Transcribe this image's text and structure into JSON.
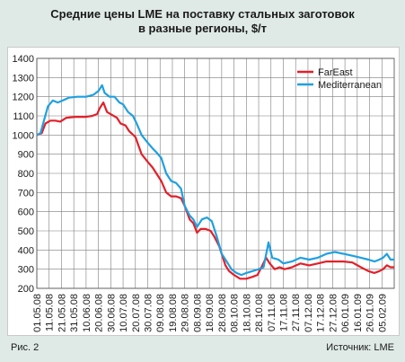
{
  "figure": {
    "title_line1": "Средние цены LME на поставку стальных заготовок",
    "title_line2": "в разные регионы, $/т",
    "caption": "Рис. 2",
    "source": "Источник: LME"
  },
  "chart_data": {
    "type": "line",
    "ylim": [
      200,
      1400
    ],
    "yticks": [
      200,
      300,
      400,
      500,
      600,
      700,
      800,
      900,
      1000,
      1100,
      1200,
      1300,
      1400
    ],
    "xlim": [
      "2008-05-01",
      "2009-02-15"
    ],
    "xticks": [
      "01.05.08",
      "11.05.08",
      "21.05.08",
      "31.05.08",
      "10.06.08",
      "20.06.08",
      "30.06.08",
      "10.07.08",
      "20.07.08",
      "30.07.08",
      "09.08.08",
      "19.08.08",
      "29.08.08",
      "08.09.08",
      "18.09.08",
      "28.09.08",
      "08.10.08",
      "18.10.08",
      "28.10.08",
      "07.11.08",
      "17.11.08",
      "27.11.08",
      "07.12.08",
      "17.12.08",
      "27.12.08",
      "06.01.09",
      "16.01.09",
      "26.01.09",
      "05.02.09"
    ],
    "grid": true,
    "legend_position": "top-right",
    "series": [
      {
        "name": "FarEast",
        "color": "#e2202a",
        "points": [
          [
            "2008-05-01",
            1000
          ],
          [
            "2008-05-05",
            1010
          ],
          [
            "2008-05-08",
            1060
          ],
          [
            "2008-05-12",
            1075
          ],
          [
            "2008-05-16",
            1075
          ],
          [
            "2008-05-20",
            1070
          ],
          [
            "2008-05-25",
            1090
          ],
          [
            "2008-06-01",
            1095
          ],
          [
            "2008-06-10",
            1095
          ],
          [
            "2008-06-15",
            1100
          ],
          [
            "2008-06-19",
            1110
          ],
          [
            "2008-06-21",
            1140
          ],
          [
            "2008-06-24",
            1170
          ],
          [
            "2008-06-27",
            1120
          ],
          [
            "2008-07-01",
            1105
          ],
          [
            "2008-07-05",
            1090
          ],
          [
            "2008-07-08",
            1060
          ],
          [
            "2008-07-12",
            1050
          ],
          [
            "2008-07-15",
            1020
          ],
          [
            "2008-07-20",
            990
          ],
          [
            "2008-07-25",
            900
          ],
          [
            "2008-07-30",
            860
          ],
          [
            "2008-08-03",
            830
          ],
          [
            "2008-08-06",
            800
          ],
          [
            "2008-08-10",
            760
          ],
          [
            "2008-08-14",
            700
          ],
          [
            "2008-08-18",
            680
          ],
          [
            "2008-08-22",
            680
          ],
          [
            "2008-08-26",
            670
          ],
          [
            "2008-08-29",
            630
          ],
          [
            "2008-09-02",
            560
          ],
          [
            "2008-09-05",
            540
          ],
          [
            "2008-09-08",
            490
          ],
          [
            "2008-09-11",
            510
          ],
          [
            "2008-09-15",
            510
          ],
          [
            "2008-09-19",
            500
          ],
          [
            "2008-09-22",
            470
          ],
          [
            "2008-09-26",
            420
          ],
          [
            "2008-10-01",
            320
          ],
          [
            "2008-10-04",
            290
          ],
          [
            "2008-10-08",
            270
          ],
          [
            "2008-10-13",
            250
          ],
          [
            "2008-10-18",
            250
          ],
          [
            "2008-10-23",
            260
          ],
          [
            "2008-10-27",
            270
          ],
          [
            "2008-10-31",
            320
          ],
          [
            "2008-11-03",
            360
          ],
          [
            "2008-11-06",
            330
          ],
          [
            "2008-11-10",
            300
          ],
          [
            "2008-11-14",
            310
          ],
          [
            "2008-11-18",
            300
          ],
          [
            "2008-11-24",
            310
          ],
          [
            "2008-12-01",
            330
          ],
          [
            "2008-12-08",
            320
          ],
          [
            "2008-12-15",
            330
          ],
          [
            "2008-12-22",
            340
          ],
          [
            "2008-12-29",
            340
          ],
          [
            "2009-01-05",
            340
          ],
          [
            "2009-01-12",
            335
          ],
          [
            "2009-01-19",
            310
          ],
          [
            "2009-01-25",
            290
          ],
          [
            "2009-01-30",
            280
          ],
          [
            "2009-02-03",
            290
          ],
          [
            "2009-02-06",
            300
          ],
          [
            "2009-02-09",
            320
          ],
          [
            "2009-02-12",
            310
          ],
          [
            "2009-02-15",
            310
          ]
        ]
      },
      {
        "name": "Mediterranean",
        "color": "#1fa0e0",
        "points": [
          [
            "2008-05-01",
            1000
          ],
          [
            "2008-05-04",
            1010
          ],
          [
            "2008-05-07",
            1080
          ],
          [
            "2008-05-10",
            1150
          ],
          [
            "2008-05-14",
            1180
          ],
          [
            "2008-05-18",
            1170
          ],
          [
            "2008-05-22",
            1180
          ],
          [
            "2008-05-27",
            1195
          ],
          [
            "2008-06-03",
            1200
          ],
          [
            "2008-06-10",
            1200
          ],
          [
            "2008-06-16",
            1210
          ],
          [
            "2008-06-20",
            1230
          ],
          [
            "2008-06-23",
            1260
          ],
          [
            "2008-06-25",
            1220
          ],
          [
            "2008-06-29",
            1200
          ],
          [
            "2008-07-03",
            1200
          ],
          [
            "2008-07-07",
            1170
          ],
          [
            "2008-07-10",
            1160
          ],
          [
            "2008-07-14",
            1120
          ],
          [
            "2008-07-18",
            1100
          ],
          [
            "2008-07-21",
            1060
          ],
          [
            "2008-07-25",
            1000
          ],
          [
            "2008-07-30",
            960
          ],
          [
            "2008-08-03",
            930
          ],
          [
            "2008-08-06",
            910
          ],
          [
            "2008-08-10",
            880
          ],
          [
            "2008-08-14",
            800
          ],
          [
            "2008-08-18",
            760
          ],
          [
            "2008-08-22",
            750
          ],
          [
            "2008-08-26",
            720
          ],
          [
            "2008-08-29",
            630
          ],
          [
            "2008-09-02",
            580
          ],
          [
            "2008-09-05",
            560
          ],
          [
            "2008-09-08",
            520
          ],
          [
            "2008-09-12",
            560
          ],
          [
            "2008-09-16",
            570
          ],
          [
            "2008-09-20",
            550
          ],
          [
            "2008-09-24",
            470
          ],
          [
            "2008-09-28",
            380
          ],
          [
            "2008-10-02",
            340
          ],
          [
            "2008-10-06",
            300
          ],
          [
            "2008-10-10",
            280
          ],
          [
            "2008-10-14",
            270
          ],
          [
            "2008-10-18",
            280
          ],
          [
            "2008-10-23",
            290
          ],
          [
            "2008-10-28",
            300
          ],
          [
            "2008-11-01",
            310
          ],
          [
            "2008-11-05",
            440
          ],
          [
            "2008-11-08",
            360
          ],
          [
            "2008-11-13",
            350
          ],
          [
            "2008-11-17",
            330
          ],
          [
            "2008-11-24",
            340
          ],
          [
            "2008-12-01",
            360
          ],
          [
            "2008-12-08",
            350
          ],
          [
            "2008-12-15",
            360
          ],
          [
            "2008-12-22",
            380
          ],
          [
            "2008-12-29",
            390
          ],
          [
            "2009-01-05",
            380
          ],
          [
            "2009-01-12",
            370
          ],
          [
            "2009-01-19",
            360
          ],
          [
            "2009-01-25",
            350
          ],
          [
            "2009-01-30",
            340
          ],
          [
            "2009-02-03",
            350
          ],
          [
            "2009-02-06",
            360
          ],
          [
            "2009-02-09",
            380
          ],
          [
            "2009-02-12",
            350
          ],
          [
            "2009-02-15",
            350
          ]
        ]
      }
    ]
  }
}
